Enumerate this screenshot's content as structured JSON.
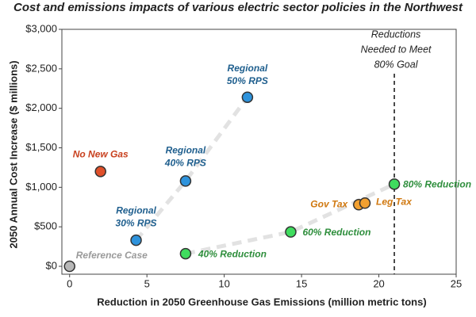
{
  "chart_data": {
    "type": "scatter",
    "title": "Cost and emissions impacts of various electric sector policies in the Northwest",
    "x_label": "Reduction in 2050 Greenhouse Gas Emissions (million metric tons)",
    "y_label": "2050 Annual Cost Increase ($ millions)",
    "xlim": [
      -0.5,
      25
    ],
    "xticks": [
      0,
      5,
      10,
      15,
      20,
      25
    ],
    "ylim": [
      -100,
      3000
    ],
    "yticks": [
      {
        "value": 0,
        "label": "$0"
      },
      {
        "value": 500,
        "label": "$500"
      },
      {
        "value": 1000,
        "label": "$1,000"
      },
      {
        "value": 1500,
        "label": "$1,500"
      },
      {
        "value": 2000,
        "label": "$2,000"
      },
      {
        "value": 2500,
        "label": "$2,500"
      },
      {
        "value": 3000,
        "label": "$3,000"
      }
    ],
    "series": [
      {
        "color": "#b8b8b8",
        "label_color": "#9a9a9a",
        "connected": false,
        "x": [
          0
        ],
        "values": [
          0
        ],
        "labels": [
          [
            "Reference Case"
          ]
        ]
      },
      {
        "color": "#e0502a",
        "label_color": "#c8401e",
        "connected": false,
        "x": [
          2
        ],
        "values": [
          1200
        ],
        "labels": [
          [
            "No New Gas"
          ]
        ]
      },
      {
        "color": "#2e93dc",
        "label_color": "#1f5f8e",
        "connected": true,
        "x": [
          4.3,
          7.5,
          11.5
        ],
        "values": [
          330,
          1080,
          2140
        ],
        "labels": [
          [
            "Regional",
            "30% RPS"
          ],
          [
            "Regional",
            "40% RPS"
          ],
          [
            "Regional",
            "50% RPS"
          ]
        ]
      },
      {
        "color": "#3fdc5e",
        "label_color": "#2e8e3c",
        "connected": true,
        "x": [
          7.5,
          14.3,
          21
        ],
        "values": [
          160,
          435,
          1040
        ],
        "labels": [
          [
            "40% Reduction"
          ],
          [
            "60% Reduction"
          ],
          [
            "80% Reduction"
          ]
        ]
      },
      {
        "color": "#f2a030",
        "label_color": "#d0780f",
        "connected": false,
        "x": [
          18.7,
          19.1
        ],
        "values": [
          780,
          800
        ],
        "labels": [
          [
            "Gov Tax"
          ],
          [
            "Leg Tax"
          ]
        ]
      }
    ],
    "reference_line": {
      "x": 21,
      "text": [
        "Reductions",
        "Needed to Meet",
        "80% Goal"
      ]
    }
  }
}
